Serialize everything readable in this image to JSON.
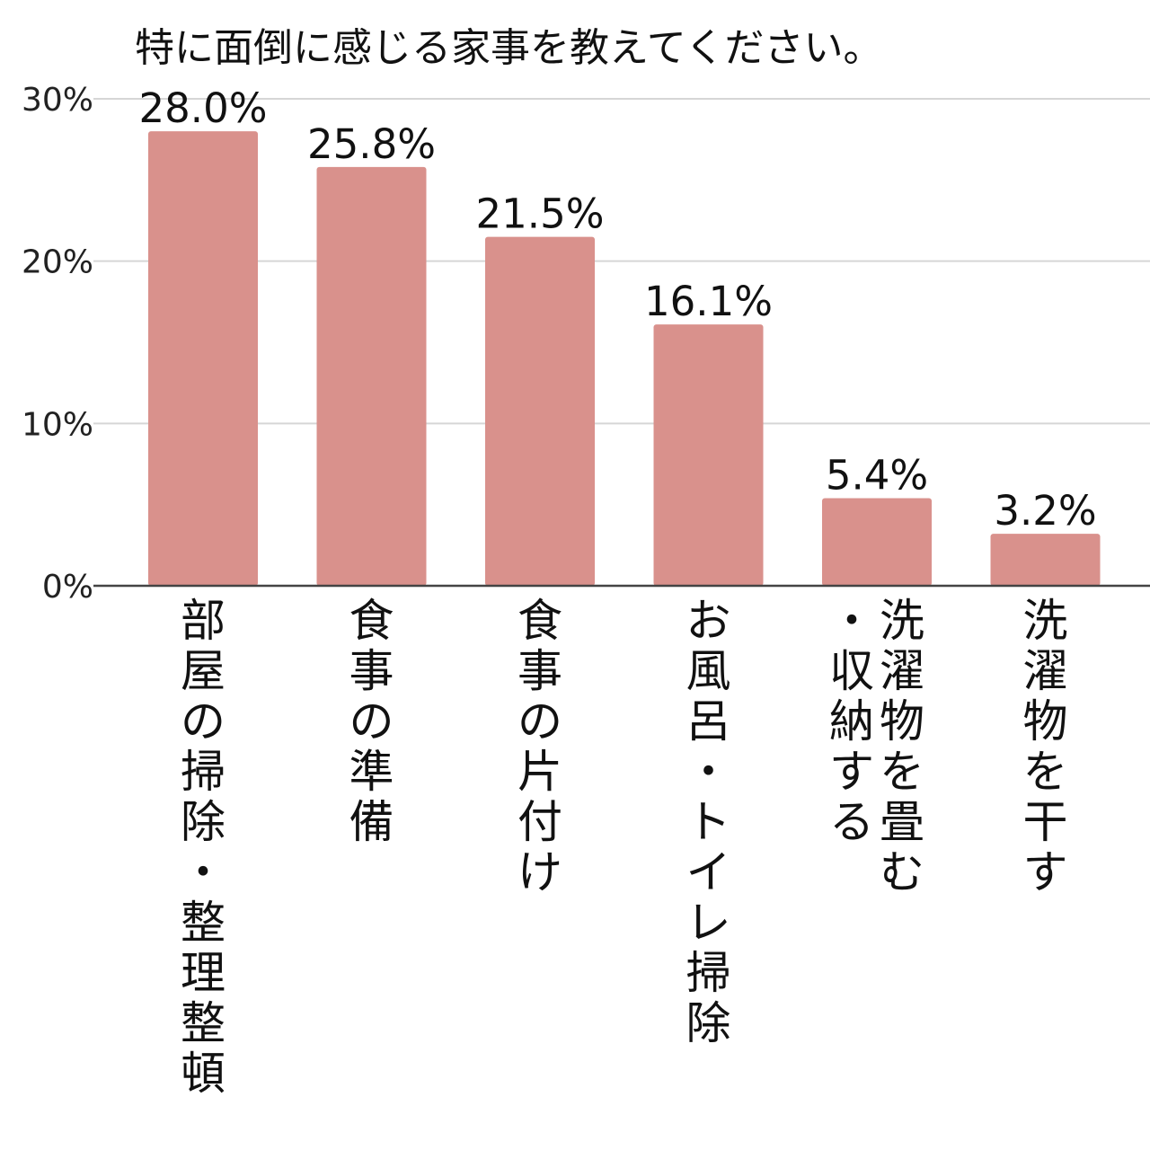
{
  "chart_data": {
    "type": "bar",
    "title": "特に面倒に感じる家事を教えてください。",
    "categories": [
      "部屋の掃除・整理整頓",
      "食事の準備",
      "食事の片付け",
      "お風呂・トイレ掃除",
      "洗濯物を畳む・収納する",
      "洗濯物を干す"
    ],
    "category_lines": [
      [
        "部屋の掃除・整理整頓"
      ],
      [
        "食事の準備"
      ],
      [
        "食事の片付け"
      ],
      [
        "お風呂・トイレ掃除"
      ],
      [
        "洗濯物を畳む",
        "・収納する"
      ],
      [
        "洗濯物を干す"
      ]
    ],
    "values": [
      28.0,
      25.8,
      21.5,
      16.1,
      5.4,
      3.2
    ],
    "value_labels": [
      "28.0%",
      "25.8%",
      "21.5%",
      "16.1%",
      "5.4%",
      "3.2%"
    ],
    "yticks": [
      0,
      10,
      20,
      30
    ],
    "ytick_labels": [
      "0%",
      "10%",
      "20%",
      "30%"
    ],
    "ylim": [
      0,
      30
    ],
    "grid": true,
    "legend": "none",
    "bar_color": "#d9918c"
  }
}
